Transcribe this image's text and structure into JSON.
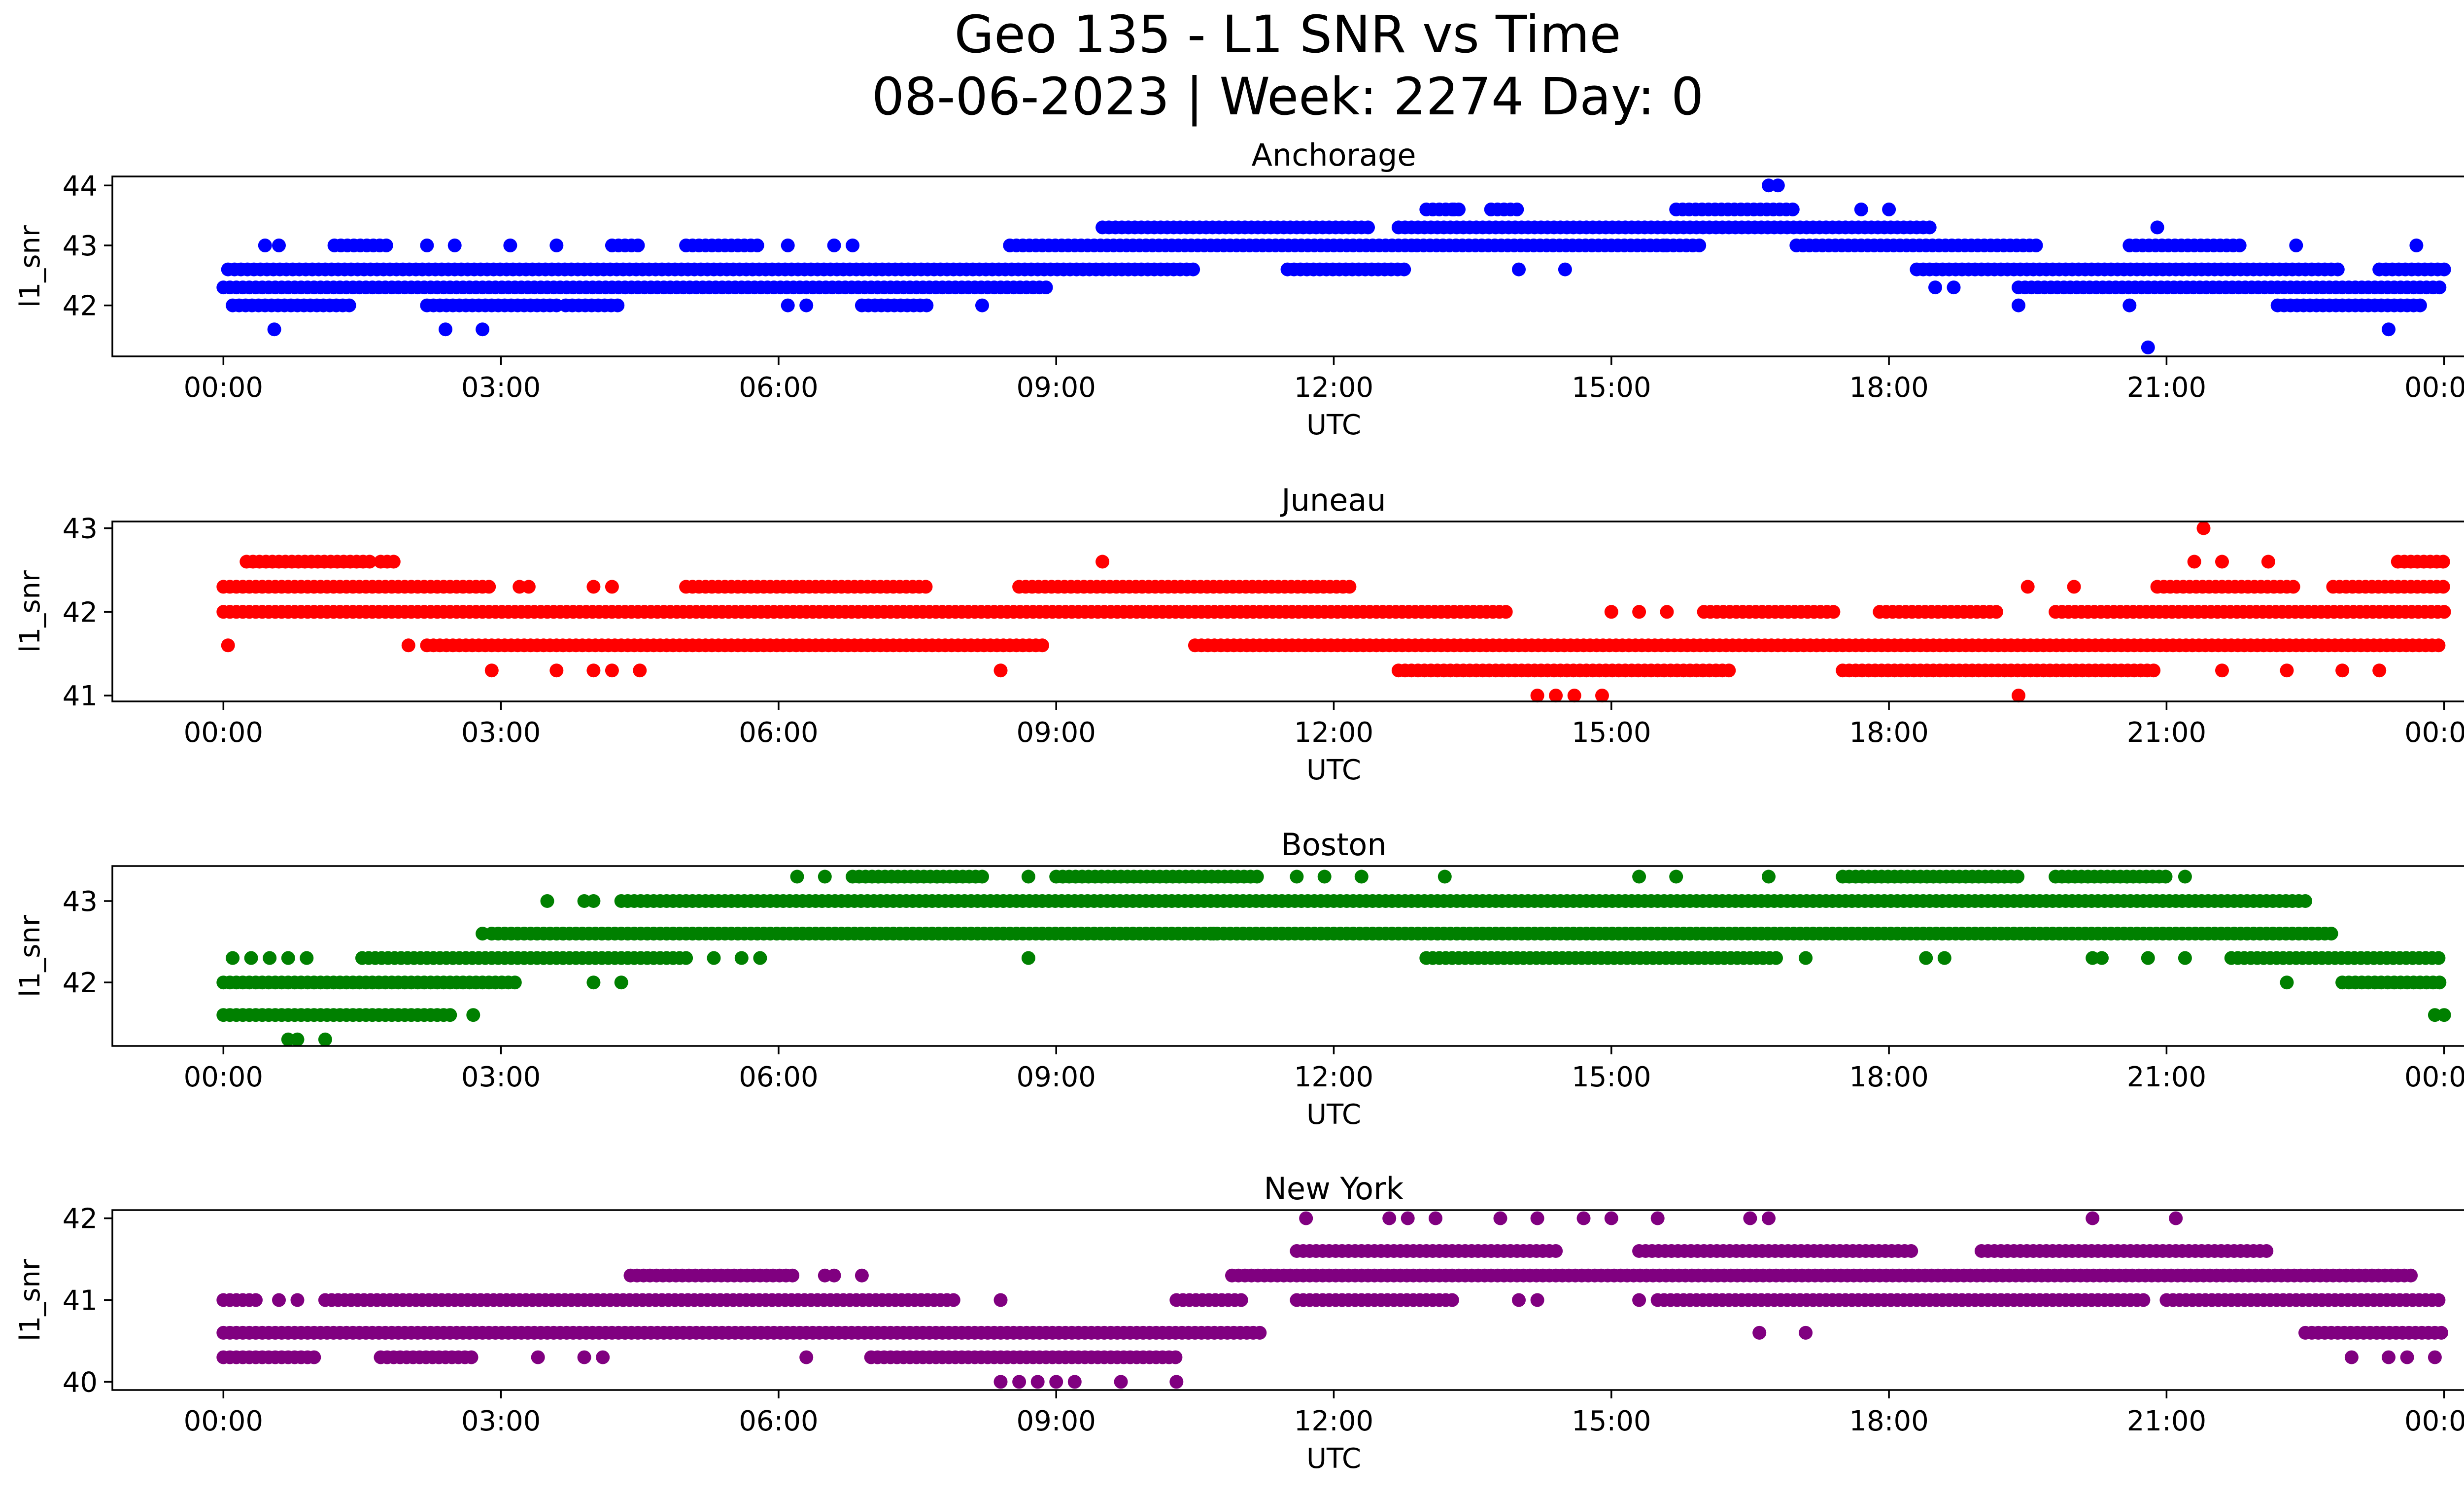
{
  "figure": {
    "title_line1": "Geo 135 - L1 SNR vs Time",
    "title_line2": "08-06-2023 | Week: 2274 Day: 0"
  },
  "chart_data": [
    {
      "type": "scatter",
      "title": "Anchorage",
      "xlabel": "UTC",
      "ylabel": "l1_snr",
      "color": "#0000ff",
      "xlim_hours": [
        -1.2,
        25.2
      ],
      "ylim": [
        41.15,
        44.15
      ],
      "yticks": [
        "42",
        "43",
        "44"
      ],
      "ytick_values": [
        42,
        43,
        44
      ],
      "xticks": [
        "00:00",
        "03:00",
        "06:00",
        "09:00",
        "12:00",
        "15:00",
        "18:00",
        "21:00",
        "00:00"
      ],
      "xtick_hours": [
        0,
        3,
        6,
        9,
        12,
        15,
        18,
        21,
        24
      ],
      "runs": [
        {
          "y": 42.3,
          "from": 0.0,
          "to": 8.9
        },
        {
          "y": 42.6,
          "from": 0.05,
          "to": 10.5
        },
        {
          "y": 42.0,
          "from": 0.1,
          "to": 1.4
        },
        {
          "y": 42.0,
          "from": 2.2,
          "to": 3.6
        },
        {
          "y": 42.0,
          "from": 3.7,
          "to": 4.3
        },
        {
          "y": 42.0,
          "from": 6.9,
          "to": 7.6
        },
        {
          "y": 43.0,
          "from": 1.2,
          "to": 1.8
        },
        {
          "y": 43.0,
          "from": 4.2,
          "to": 4.5
        },
        {
          "y": 43.0,
          "from": 5.0,
          "to": 5.8
        },
        {
          "y": 43.0,
          "from": 8.5,
          "to": 12.9
        },
        {
          "y": 43.3,
          "from": 9.5,
          "to": 12.4
        },
        {
          "y": 42.6,
          "from": 11.5,
          "to": 12.8
        },
        {
          "y": 43.3,
          "from": 12.7,
          "to": 18.5
        },
        {
          "y": 43.0,
          "from": 12.9,
          "to": 15.6
        },
        {
          "y": 43.6,
          "from": 13.0,
          "to": 13.4
        },
        {
          "y": 43.6,
          "from": 13.7,
          "to": 14.0
        },
        {
          "y": 43.6,
          "from": 15.7,
          "to": 17.0
        },
        {
          "y": 43.0,
          "from": 17.0,
          "to": 19.6
        },
        {
          "y": 43.0,
          "from": 15.6,
          "to": 16.0
        },
        {
          "y": 42.6,
          "from": 18.3,
          "to": 22.9
        },
        {
          "y": 42.3,
          "from": 19.4,
          "to": 24.0
        },
        {
          "y": 43.0,
          "from": 20.6,
          "to": 21.8
        },
        {
          "y": 42.0,
          "from": 22.2,
          "to": 23.8
        },
        {
          "y": 42.6,
          "from": 23.3,
          "to": 24.0
        }
      ],
      "points": [
        {
          "t": 0.55,
          "y": 41.6
        },
        {
          "t": 2.4,
          "y": 41.6
        },
        {
          "t": 2.8,
          "y": 41.6
        },
        {
          "t": 0.45,
          "y": 43.0
        },
        {
          "t": 0.6,
          "y": 43.0
        },
        {
          "t": 2.2,
          "y": 43.0
        },
        {
          "t": 2.5,
          "y": 43.0
        },
        {
          "t": 3.1,
          "y": 43.0
        },
        {
          "t": 3.6,
          "y": 43.0
        },
        {
          "t": 6.1,
          "y": 43.0
        },
        {
          "t": 6.6,
          "y": 43.0
        },
        {
          "t": 6.8,
          "y": 43.0
        },
        {
          "t": 6.1,
          "y": 42.0
        },
        {
          "t": 6.3,
          "y": 42.0
        },
        {
          "t": 8.2,
          "y": 42.0
        },
        {
          "t": 14.0,
          "y": 42.6
        },
        {
          "t": 14.5,
          "y": 42.6
        },
        {
          "t": 13.3,
          "y": 43.6
        },
        {
          "t": 16.7,
          "y": 44.0
        },
        {
          "t": 16.8,
          "y": 44.0
        },
        {
          "t": 17.7,
          "y": 43.6
        },
        {
          "t": 18.0,
          "y": 43.6
        },
        {
          "t": 18.5,
          "y": 42.3
        },
        {
          "t": 18.7,
          "y": 42.3
        },
        {
          "t": 19.4,
          "y": 42.0
        },
        {
          "t": 20.6,
          "y": 42.0
        },
        {
          "t": 20.8,
          "y": 41.3
        },
        {
          "t": 20.9,
          "y": 43.3
        },
        {
          "t": 22.4,
          "y": 43.0
        },
        {
          "t": 23.4,
          "y": 41.6
        },
        {
          "t": 23.7,
          "y": 43.0
        }
      ]
    },
    {
      "type": "scatter",
      "title": "Juneau",
      "xlabel": "UTC",
      "ylabel": "l1_snr",
      "color": "#ff0000",
      "xlim_hours": [
        -1.2,
        25.2
      ],
      "ylim": [
        40.93,
        43.08
      ],
      "yticks": [
        "41",
        "42",
        "43"
      ],
      "ytick_values": [
        41,
        42,
        43
      ],
      "xticks": [
        "00:00",
        "03:00",
        "06:00",
        "09:00",
        "12:00",
        "15:00",
        "18:00",
        "21:00",
        "00:00"
      ],
      "xtick_hours": [
        0,
        3,
        6,
        9,
        12,
        15,
        18,
        21,
        24
      ],
      "runs": [
        {
          "y": 42.3,
          "from": 0.0,
          "to": 2.9
        },
        {
          "y": 42.0,
          "from": 0.0,
          "to": 13.9
        },
        {
          "y": 42.6,
          "from": 0.25,
          "to": 1.6
        },
        {
          "y": 42.6,
          "from": 1.7,
          "to": 1.9
        },
        {
          "y": 41.6,
          "from": 2.2,
          "to": 8.9
        },
        {
          "y": 42.3,
          "from": 5.0,
          "to": 7.6
        },
        {
          "y": 42.3,
          "from": 8.6,
          "to": 12.2
        },
        {
          "y": 41.6,
          "from": 10.5,
          "to": 24.0
        },
        {
          "y": 41.3,
          "from": 12.7,
          "to": 16.3
        },
        {
          "y": 42.0,
          "from": 16.0,
          "to": 17.4
        },
        {
          "y": 41.3,
          "from": 17.5,
          "to": 20.9
        },
        {
          "y": 42.0,
          "from": 17.9,
          "to": 19.2
        },
        {
          "y": 42.0,
          "from": 19.8,
          "to": 24.0
        },
        {
          "y": 42.3,
          "from": 20.9,
          "to": 22.4
        },
        {
          "y": 42.3,
          "from": 22.8,
          "to": 24.0
        },
        {
          "y": 42.6,
          "from": 23.5,
          "to": 24.0
        }
      ],
      "points": [
        {
          "t": 0.05,
          "y": 41.6
        },
        {
          "t": 2.0,
          "y": 41.6
        },
        {
          "t": 2.9,
          "y": 41.3
        },
        {
          "t": 3.6,
          "y": 41.3
        },
        {
          "t": 4.0,
          "y": 41.3
        },
        {
          "t": 4.2,
          "y": 41.3
        },
        {
          "t": 4.5,
          "y": 41.3
        },
        {
          "t": 8.4,
          "y": 41.3
        },
        {
          "t": 3.2,
          "y": 42.3
        },
        {
          "t": 3.3,
          "y": 42.3
        },
        {
          "t": 4.0,
          "y": 42.3
        },
        {
          "t": 4.2,
          "y": 42.3
        },
        {
          "t": 9.5,
          "y": 42.6
        },
        {
          "t": 14.2,
          "y": 41.0
        },
        {
          "t": 14.4,
          "y": 41.0
        },
        {
          "t": 14.6,
          "y": 41.0
        },
        {
          "t": 14.9,
          "y": 41.0
        },
        {
          "t": 15.0,
          "y": 42.0
        },
        {
          "t": 15.3,
          "y": 42.0
        },
        {
          "t": 15.6,
          "y": 42.0
        },
        {
          "t": 19.4,
          "y": 41.0
        },
        {
          "t": 19.5,
          "y": 42.3
        },
        {
          "t": 20.0,
          "y": 42.3
        },
        {
          "t": 21.4,
          "y": 43.0
        },
        {
          "t": 21.3,
          "y": 42.6
        },
        {
          "t": 21.6,
          "y": 42.6
        },
        {
          "t": 22.1,
          "y": 42.6
        },
        {
          "t": 21.6,
          "y": 41.3
        },
        {
          "t": 22.3,
          "y": 41.3
        },
        {
          "t": 22.9,
          "y": 41.3
        },
        {
          "t": 23.3,
          "y": 41.3
        }
      ]
    },
    {
      "type": "scatter",
      "title": "Boston",
      "xlabel": "UTC",
      "ylabel": "l1_snr",
      "color": "#008000",
      "xlim_hours": [
        -1.2,
        25.2
      ],
      "ylim": [
        41.22,
        43.43
      ],
      "yticks": [
        "42",
        "43"
      ],
      "ytick_values": [
        42,
        43
      ],
      "xticks": [
        "00:00",
        "03:00",
        "06:00",
        "09:00",
        "12:00",
        "15:00",
        "18:00",
        "21:00",
        "00:00"
      ],
      "xtick_hours": [
        0,
        3,
        6,
        9,
        12,
        15,
        18,
        21,
        24
      ],
      "runs": [
        {
          "y": 42.0,
          "from": 0.0,
          "to": 3.2
        },
        {
          "y": 41.6,
          "from": 0.0,
          "to": 2.5
        },
        {
          "y": 42.3,
          "from": 1.5,
          "to": 5.0
        },
        {
          "y": 42.6,
          "from": 2.9,
          "to": 22.8
        },
        {
          "y": 43.0,
          "from": 4.3,
          "to": 22.5
        },
        {
          "y": 43.3,
          "from": 6.8,
          "to": 8.2
        },
        {
          "y": 43.3,
          "from": 9.0,
          "to": 11.2
        },
        {
          "y": 42.3,
          "from": 13.0,
          "to": 16.8
        },
        {
          "y": 43.3,
          "from": 17.5,
          "to": 19.4
        },
        {
          "y": 43.3,
          "from": 19.8,
          "to": 21.0
        },
        {
          "y": 42.3,
          "from": 21.7,
          "to": 24.0
        },
        {
          "y": 42.0,
          "from": 22.9,
          "to": 24.0
        }
      ],
      "points": [
        {
          "t": 0.1,
          "y": 42.3
        },
        {
          "t": 0.3,
          "y": 42.3
        },
        {
          "t": 0.5,
          "y": 42.3
        },
        {
          "t": 0.7,
          "y": 42.3
        },
        {
          "t": 0.9,
          "y": 42.3
        },
        {
          "t": 0.7,
          "y": 41.3
        },
        {
          "t": 0.8,
          "y": 41.3
        },
        {
          "t": 1.1,
          "y": 41.3
        },
        {
          "t": 2.7,
          "y": 41.6
        },
        {
          "t": 2.8,
          "y": 42.6
        },
        {
          "t": 3.5,
          "y": 43.0
        },
        {
          "t": 3.9,
          "y": 43.0
        },
        {
          "t": 4.0,
          "y": 43.0
        },
        {
          "t": 4.0,
          "y": 42.0
        },
        {
          "t": 4.3,
          "y": 42.0
        },
        {
          "t": 5.3,
          "y": 42.3
        },
        {
          "t": 5.6,
          "y": 42.3
        },
        {
          "t": 5.8,
          "y": 42.3
        },
        {
          "t": 6.2,
          "y": 43.3
        },
        {
          "t": 6.5,
          "y": 43.3
        },
        {
          "t": 8.7,
          "y": 43.3
        },
        {
          "t": 8.7,
          "y": 42.3
        },
        {
          "t": 10.7,
          "y": 42.6
        },
        {
          "t": 11.6,
          "y": 43.3
        },
        {
          "t": 11.9,
          "y": 43.3
        },
        {
          "t": 12.3,
          "y": 43.3
        },
        {
          "t": 13.2,
          "y": 43.3
        },
        {
          "t": 15.3,
          "y": 43.3
        },
        {
          "t": 15.7,
          "y": 43.3
        },
        {
          "t": 16.7,
          "y": 43.3
        },
        {
          "t": 17.1,
          "y": 42.3
        },
        {
          "t": 18.4,
          "y": 42.3
        },
        {
          "t": 18.6,
          "y": 42.3
        },
        {
          "t": 20.2,
          "y": 42.3
        },
        {
          "t": 20.3,
          "y": 42.3
        },
        {
          "t": 20.8,
          "y": 42.3
        },
        {
          "t": 21.2,
          "y": 42.3
        },
        {
          "t": 21.2,
          "y": 43.3
        },
        {
          "t": 22.3,
          "y": 42.0
        },
        {
          "t": 23.9,
          "y": 41.6
        },
        {
          "t": 24.0,
          "y": 41.6
        }
      ]
    },
    {
      "type": "scatter",
      "title": "New York",
      "xlabel": "UTC",
      "ylabel": "l1_snr",
      "color": "#800080",
      "xlim_hours": [
        -1.2,
        25.2
      ],
      "ylim": [
        39.9,
        42.1
      ],
      "yticks": [
        "40",
        "41",
        "42"
      ],
      "ytick_values": [
        40,
        41,
        42
      ],
      "xticks": [
        "00:00",
        "03:00",
        "06:00",
        "09:00",
        "12:00",
        "15:00",
        "18:00",
        "21:00",
        "00:00"
      ],
      "xtick_hours": [
        0,
        3,
        6,
        9,
        12,
        15,
        18,
        21,
        24
      ],
      "runs": [
        {
          "y": 41.0,
          "from": 0.0,
          "to": 0.4
        },
        {
          "y": 41.0,
          "from": 1.1,
          "to": 7.9
        },
        {
          "y": 40.6,
          "from": 0.0,
          "to": 11.2
        },
        {
          "y": 40.3,
          "from": 0.0,
          "to": 1.0
        },
        {
          "y": 40.3,
          "from": 1.7,
          "to": 2.7
        },
        {
          "y": 40.3,
          "from": 7.0,
          "to": 10.3
        },
        {
          "y": 41.3,
          "from": 4.4,
          "to": 6.2
        },
        {
          "y": 41.0,
          "from": 10.3,
          "to": 11.0
        },
        {
          "y": 41.3,
          "from": 10.9,
          "to": 23.7
        },
        {
          "y": 41.6,
          "from": 11.6,
          "to": 14.4
        },
        {
          "y": 41.0,
          "from": 11.6,
          "to": 13.3
        },
        {
          "y": 41.6,
          "from": 15.3,
          "to": 18.3
        },
        {
          "y": 41.0,
          "from": 15.5,
          "to": 20.8
        },
        {
          "y": 41.6,
          "from": 19.0,
          "to": 22.1
        },
        {
          "y": 41.0,
          "from": 21.0,
          "to": 24.0
        },
        {
          "y": 40.6,
          "from": 22.5,
          "to": 24.0
        }
      ],
      "points": [
        {
          "t": 0.6,
          "y": 41.0
        },
        {
          "t": 0.8,
          "y": 41.0
        },
        {
          "t": 3.4,
          "y": 40.3
        },
        {
          "t": 3.9,
          "y": 40.3
        },
        {
          "t": 4.1,
          "y": 40.3
        },
        {
          "t": 6.3,
          "y": 40.3
        },
        {
          "t": 6.5,
          "y": 41.3
        },
        {
          "t": 6.6,
          "y": 41.3
        },
        {
          "t": 6.9,
          "y": 41.3
        },
        {
          "t": 8.4,
          "y": 41.0
        },
        {
          "t": 8.4,
          "y": 40.0
        },
        {
          "t": 8.6,
          "y": 40.0
        },
        {
          "t": 8.8,
          "y": 40.0
        },
        {
          "t": 9.0,
          "y": 40.0
        },
        {
          "t": 9.2,
          "y": 40.0
        },
        {
          "t": 9.7,
          "y": 40.0
        },
        {
          "t": 10.3,
          "y": 40.0
        },
        {
          "t": 11.7,
          "y": 42.0
        },
        {
          "t": 12.6,
          "y": 42.0
        },
        {
          "t": 12.8,
          "y": 42.0
        },
        {
          "t": 13.1,
          "y": 42.0
        },
        {
          "t": 13.8,
          "y": 42.0
        },
        {
          "t": 14.2,
          "y": 42.0
        },
        {
          "t": 14.7,
          "y": 42.0
        },
        {
          "t": 15.0,
          "y": 42.0
        },
        {
          "t": 15.5,
          "y": 42.0
        },
        {
          "t": 16.5,
          "y": 42.0
        },
        {
          "t": 16.7,
          "y": 42.0
        },
        {
          "t": 20.2,
          "y": 42.0
        },
        {
          "t": 21.1,
          "y": 42.0
        },
        {
          "t": 14.0,
          "y": 41.0
        },
        {
          "t": 14.2,
          "y": 41.0
        },
        {
          "t": 15.3,
          "y": 41.0
        },
        {
          "t": 16.6,
          "y": 40.6
        },
        {
          "t": 17.1,
          "y": 40.6
        },
        {
          "t": 23.0,
          "y": 40.3
        },
        {
          "t": 23.4,
          "y": 40.3
        },
        {
          "t": 23.6,
          "y": 40.3
        },
        {
          "t": 23.9,
          "y": 40.3
        }
      ]
    }
  ]
}
